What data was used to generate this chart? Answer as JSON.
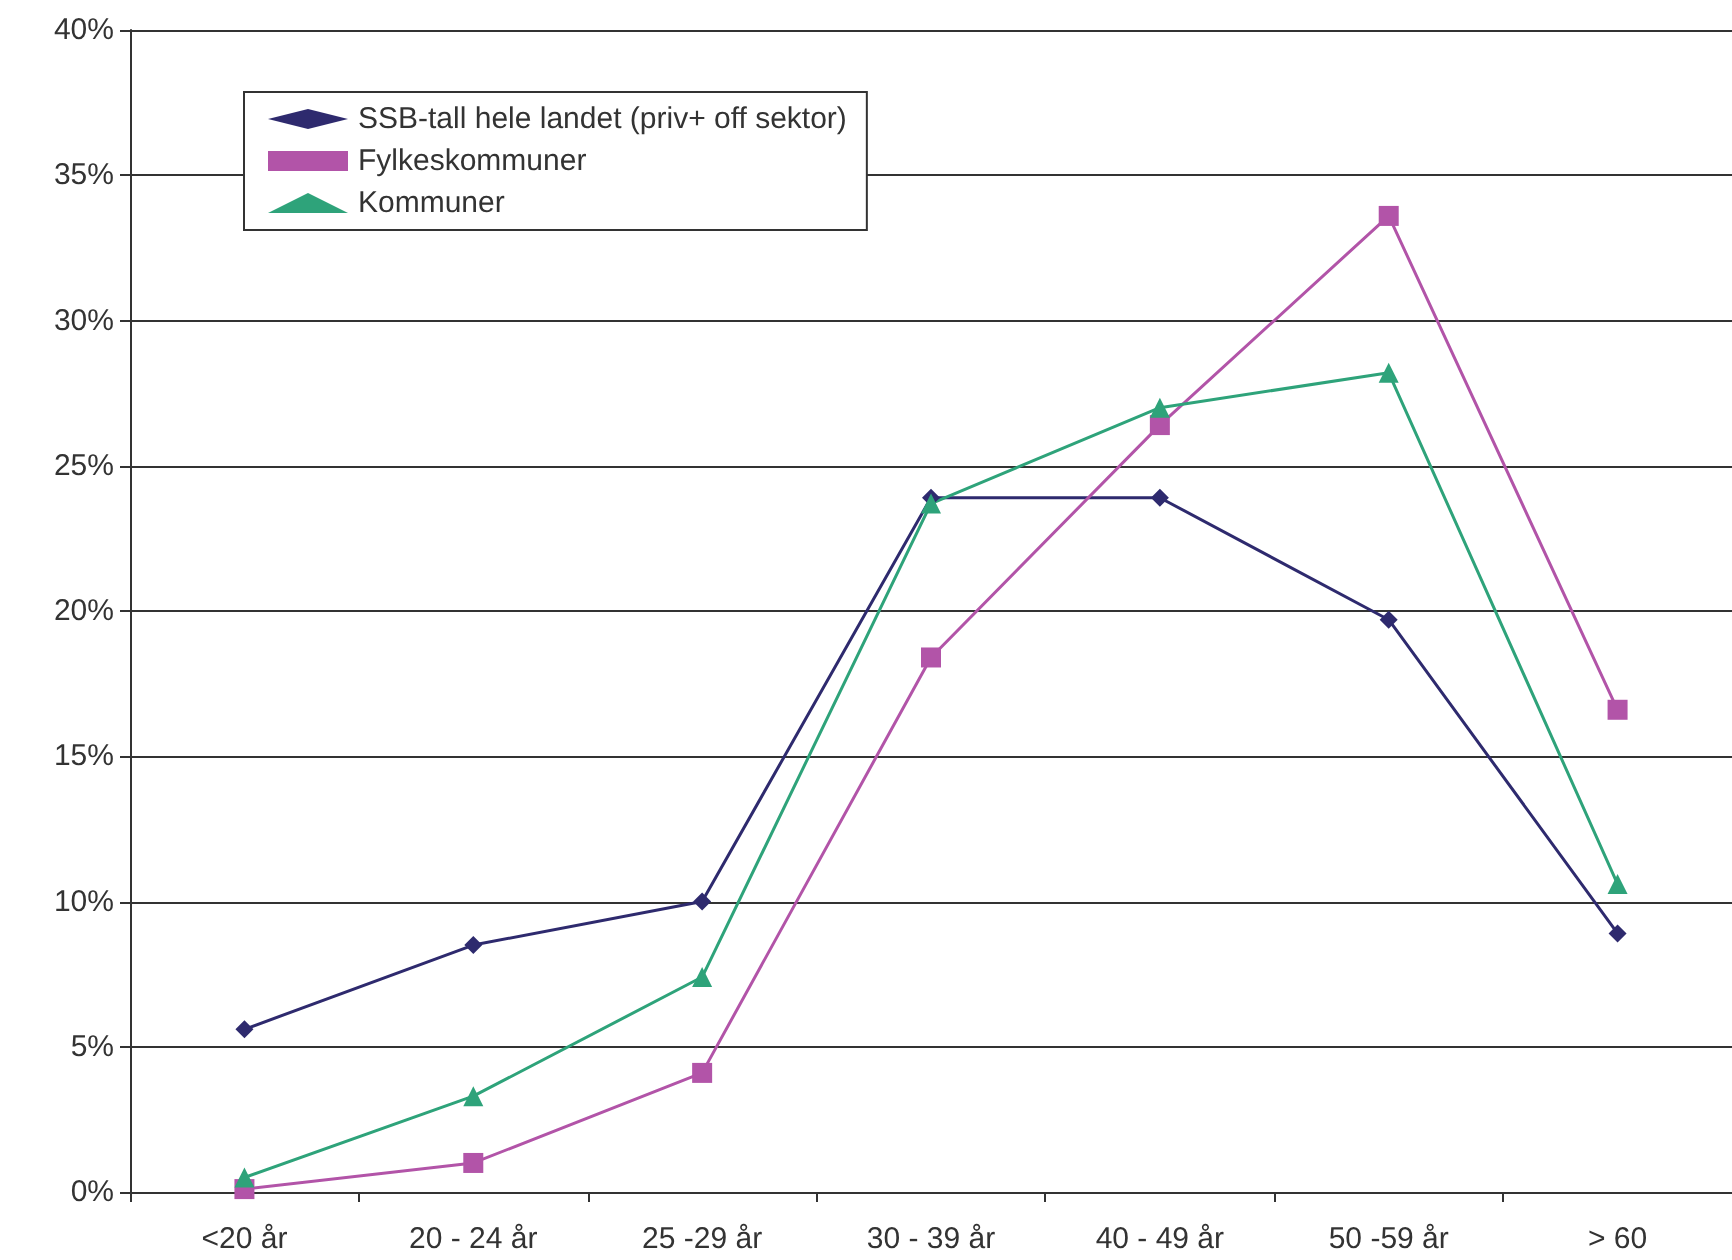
{
  "chart_data": {
    "type": "line",
    "categories": [
      "<20 år",
      "20 - 24 år",
      "25 -29 år",
      "30 - 39 år",
      "40 - 49 år",
      "50 -59 år",
      "> 60"
    ],
    "series": [
      {
        "name": "SSB-tall hele landet (priv+ off sektor)",
        "color": "#2e2a6e",
        "marker": "diamond",
        "values": [
          5.6,
          8.5,
          10.0,
          23.9,
          23.9,
          19.7,
          8.9
        ]
      },
      {
        "name": "Fylkeskommuner",
        "color": "#b254a8",
        "marker": "square",
        "values": [
          0.1,
          1.0,
          4.1,
          18.4,
          26.4,
          33.6,
          16.6
        ]
      },
      {
        "name": "Kommuner",
        "color": "#2ea37a",
        "marker": "triangle",
        "values": [
          0.5,
          3.3,
          7.4,
          23.7,
          27.0,
          28.2,
          10.6
        ]
      }
    ],
    "ylim": [
      0,
      40
    ],
    "yticks": [
      {
        "value": 0,
        "label": "0%"
      },
      {
        "value": 5,
        "label": "5%"
      },
      {
        "value": 10,
        "label": "10%"
      },
      {
        "value": 15,
        "label": "15%"
      },
      {
        "value": 20,
        "label": "20%"
      },
      {
        "value": 25,
        "label": "25%"
      },
      {
        "value": 30,
        "label": "30%"
      },
      {
        "value": 35,
        "label": "35%"
      },
      {
        "value": 40,
        "label": "40%"
      }
    ],
    "grid": "y",
    "legend": "top left",
    "line_style": "solid"
  }
}
